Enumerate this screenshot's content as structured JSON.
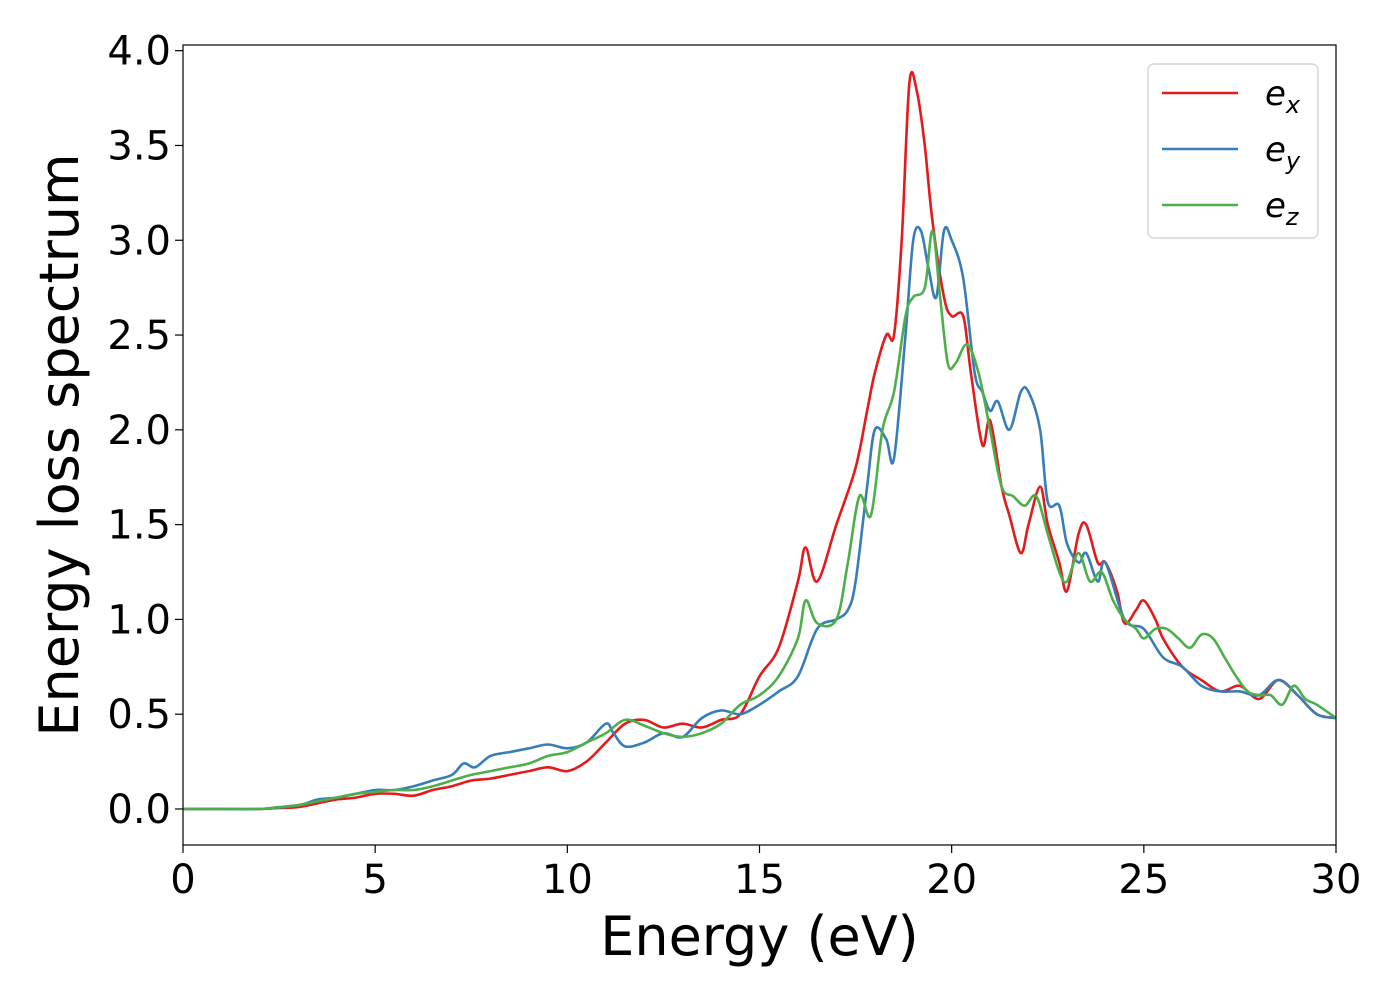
{
  "chart_data": {
    "type": "line",
    "title": "",
    "xlabel": "Energy (eV)",
    "ylabel": "Energy loss spectrum",
    "xlim": [
      0,
      30
    ],
    "ylim": [
      -0.19,
      4.03
    ],
    "xticks": [
      0,
      5,
      10,
      15,
      20,
      25,
      30
    ],
    "yticks": [
      0.0,
      0.5,
      1.0,
      1.5,
      2.0,
      2.5,
      3.0,
      3.5,
      4.0
    ],
    "xtick_labels": [
      "0",
      "5",
      "10",
      "15",
      "20",
      "25",
      "30"
    ],
    "ytick_labels": [
      "0.0",
      "0.5",
      "1.0",
      "1.5",
      "2.0",
      "2.5",
      "3.0",
      "3.5",
      "4.0"
    ],
    "grid": false,
    "legend": "top-right",
    "series": [
      {
        "name": "e",
        "sub": "x",
        "color": "#e41a1c",
        "x": [
          0,
          1,
          2,
          2.5,
          3,
          3.5,
          4,
          4.5,
          5,
          5.5,
          6,
          6.5,
          7,
          7.5,
          8,
          8.5,
          9,
          9.5,
          10,
          10.5,
          11,
          11.5,
          12,
          12.5,
          13,
          13.5,
          14,
          14.5,
          15,
          15.5,
          16,
          16.2,
          16.5,
          17,
          17.5,
          17.8,
          18,
          18.3,
          18.5,
          18.7,
          18.9,
          19.1,
          19.3,
          19.5,
          19.8,
          20,
          20.3,
          20.5,
          20.8,
          21,
          21.3,
          21.5,
          21.8,
          22,
          22.3,
          22.5,
          22.8,
          23,
          23.3,
          23.5,
          23.8,
          24,
          24.3,
          24.5,
          24.8,
          25,
          25.3,
          25.5,
          26,
          26.5,
          27,
          27.5,
          28,
          28.5,
          29,
          29.5,
          30
        ],
        "y": [
          0,
          0,
          0,
          0.005,
          0.01,
          0.03,
          0.05,
          0.06,
          0.08,
          0.08,
          0.07,
          0.1,
          0.12,
          0.15,
          0.16,
          0.18,
          0.2,
          0.22,
          0.2,
          0.25,
          0.35,
          0.45,
          0.47,
          0.43,
          0.45,
          0.43,
          0.47,
          0.5,
          0.7,
          0.85,
          1.2,
          1.38,
          1.2,
          1.5,
          1.8,
          2.1,
          2.3,
          2.5,
          2.5,
          3.0,
          3.83,
          3.78,
          3.5,
          3.1,
          2.7,
          2.6,
          2.6,
          2.3,
          1.92,
          2.05,
          1.7,
          1.55,
          1.35,
          1.5,
          1.7,
          1.5,
          1.3,
          1.15,
          1.45,
          1.5,
          1.3,
          1.3,
          1.15,
          0.98,
          1.05,
          1.1,
          1.0,
          0.9,
          0.75,
          0.68,
          0.62,
          0.65,
          0.58,
          0.68,
          0.6,
          0.5,
          0.48
        ]
      },
      {
        "name": "e",
        "sub": "y",
        "color": "#377eb8",
        "x": [
          0,
          1,
          2,
          3,
          3.5,
          4,
          4.5,
          5,
          5.5,
          6,
          6.5,
          7,
          7.3,
          7.6,
          8,
          8.5,
          9,
          9.5,
          10,
          10.5,
          11,
          11.2,
          11.5,
          12,
          12.5,
          13,
          13.5,
          14,
          14.5,
          15,
          15.5,
          16,
          16.5,
          17,
          17.3,
          17.5,
          17.8,
          18,
          18.3,
          18.5,
          18.8,
          19,
          19.2,
          19.4,
          19.6,
          19.8,
          20,
          20.3,
          20.6,
          20.8,
          21,
          21.2,
          21.5,
          21.8,
          22,
          22.3,
          22.5,
          22.8,
          23,
          23.3,
          23.5,
          23.8,
          24,
          24.5,
          25,
          25.5,
          26,
          26.5,
          27,
          27.5,
          28,
          28.5,
          29,
          29.5,
          30
        ],
        "y": [
          0,
          0,
          0,
          0.02,
          0.05,
          0.06,
          0.08,
          0.1,
          0.1,
          0.12,
          0.15,
          0.18,
          0.24,
          0.22,
          0.28,
          0.3,
          0.32,
          0.34,
          0.32,
          0.35,
          0.45,
          0.4,
          0.33,
          0.35,
          0.4,
          0.38,
          0.48,
          0.52,
          0.5,
          0.55,
          0.62,
          0.7,
          0.95,
          1.0,
          1.05,
          1.2,
          1.7,
          2.0,
          1.95,
          1.85,
          2.5,
          3.0,
          3.05,
          2.85,
          2.7,
          3.05,
          3.0,
          2.8,
          2.3,
          2.2,
          2.1,
          2.15,
          2.0,
          2.2,
          2.2,
          2.0,
          1.62,
          1.6,
          1.4,
          1.3,
          1.35,
          1.2,
          1.3,
          1.0,
          0.95,
          0.8,
          0.75,
          0.65,
          0.62,
          0.62,
          0.6,
          0.68,
          0.6,
          0.5,
          0.48
        ]
      },
      {
        "name": "e",
        "sub": "z",
        "color": "#4daf4a",
        "x": [
          0,
          1,
          2,
          2.5,
          3,
          3.5,
          4,
          4.5,
          5,
          5.5,
          6,
          6.5,
          7,
          7.5,
          8,
          8.5,
          9,
          9.5,
          10,
          10.5,
          11,
          11.5,
          12,
          12.5,
          13,
          13.5,
          14,
          14.5,
          15,
          15.5,
          16,
          16.2,
          16.5,
          17,
          17.3,
          17.6,
          17.9,
          18.2,
          18.5,
          18.8,
          19,
          19.3,
          19.5,
          19.7,
          19.9,
          20.1,
          20.4,
          20.7,
          21,
          21.3,
          21.6,
          21.9,
          22.2,
          22.5,
          22.8,
          23,
          23.3,
          23.6,
          23.9,
          24.2,
          24.5,
          24.8,
          25,
          25.3,
          25.6,
          25.9,
          26.2,
          26.5,
          26.8,
          27.1,
          27.4,
          27.7,
          28,
          28.3,
          28.6,
          28.9,
          29.2,
          29.5,
          30
        ],
        "y": [
          0,
          0,
          0,
          0.01,
          0.02,
          0.04,
          0.06,
          0.08,
          0.09,
          0.1,
          0.1,
          0.12,
          0.15,
          0.18,
          0.2,
          0.22,
          0.24,
          0.28,
          0.3,
          0.35,
          0.4,
          0.47,
          0.44,
          0.4,
          0.38,
          0.4,
          0.45,
          0.55,
          0.6,
          0.7,
          0.9,
          1.1,
          0.98,
          1.0,
          1.3,
          1.65,
          1.55,
          2.0,
          2.2,
          2.6,
          2.7,
          2.75,
          3.05,
          2.7,
          2.35,
          2.35,
          2.45,
          2.3,
          2.0,
          1.7,
          1.65,
          1.6,
          1.65,
          1.45,
          1.25,
          1.2,
          1.35,
          1.2,
          1.25,
          1.1,
          1.0,
          0.95,
          0.9,
          0.95,
          0.95,
          0.9,
          0.85,
          0.92,
          0.9,
          0.8,
          0.7,
          0.62,
          0.6,
          0.6,
          0.55,
          0.65,
          0.58,
          0.55,
          0.48
        ]
      }
    ]
  }
}
